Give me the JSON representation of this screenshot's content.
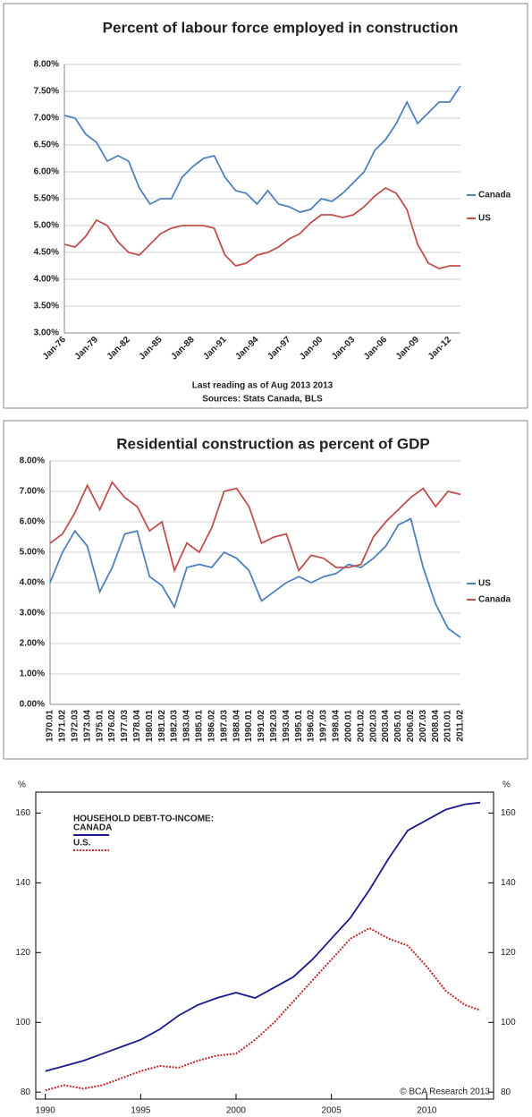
{
  "chart_data": [
    {
      "type": "line",
      "title": "Percent of labour force employed in construction",
      "categories": [
        "Jan-76",
        null,
        null,
        "Jan-79",
        null,
        null,
        "Jan-82",
        null,
        null,
        "Jan-85",
        null,
        null,
        "Jan-88",
        null,
        null,
        "Jan-91",
        null,
        null,
        "Jan-94",
        null,
        null,
        "Jan-97",
        null,
        null,
        "Jan-00",
        null,
        null,
        "Jan-03",
        null,
        null,
        "Jan-06",
        null,
        null,
        "Jan-09",
        null,
        null,
        "Jan-12",
        null
      ],
      "series": [
        {
          "name": "Canada",
          "color": "#4f81bd",
          "values": [
            7.05,
            7.0,
            6.7,
            6.55,
            6.2,
            6.3,
            6.2,
            5.7,
            5.4,
            5.5,
            5.5,
            5.9,
            6.1,
            6.25,
            6.3,
            5.9,
            5.65,
            5.6,
            5.4,
            5.65,
            5.4,
            5.35,
            5.25,
            5.3,
            5.5,
            5.45,
            5.6,
            5.8,
            6.0,
            6.4,
            6.6,
            6.9,
            7.3,
            6.9,
            7.1,
            7.3,
            7.3,
            7.6
          ]
        },
        {
          "name": "US",
          "color": "#c0504d",
          "values": [
            4.65,
            4.6,
            4.8,
            5.1,
            5.0,
            4.7,
            4.5,
            4.45,
            4.65,
            4.85,
            4.95,
            5.0,
            5.0,
            5.0,
            4.95,
            4.45,
            4.25,
            4.3,
            4.45,
            4.5,
            4.6,
            4.75,
            4.85,
            5.05,
            5.2,
            5.2,
            5.15,
            5.2,
            5.35,
            5.55,
            5.7,
            5.6,
            5.3,
            4.65,
            4.3,
            4.2,
            4.25,
            4.25
          ]
        }
      ],
      "ylim": [
        3,
        8
      ],
      "yticks": [
        {
          "value": 3,
          "label": "3.00%"
        },
        {
          "value": 3.5,
          "label": "3.50%"
        },
        {
          "value": 4,
          "label": "4.00%"
        },
        {
          "value": 4.5,
          "label": "4.50%"
        },
        {
          "value": 5,
          "label": "5.00%"
        },
        {
          "value": 5.5,
          "label": "5.50%"
        },
        {
          "value": 6,
          "label": "6.00%"
        },
        {
          "value": 6.5,
          "label": "6.50%"
        },
        {
          "value": 7,
          "label": "7.00%"
        },
        {
          "value": 7.5,
          "label": "7.50%"
        },
        {
          "value": 8,
          "label": "8.00%"
        }
      ],
      "grid": true,
      "legend": "right",
      "notes": [
        "Last reading as of Aug 2013 2013",
        "Sources: Stats Canada, BLS"
      ]
    },
    {
      "type": "line",
      "title": "Residential construction as  percent of GDP",
      "categories": [
        "1970.01",
        "1971.02",
        "1972.03",
        "1973.04",
        "1975.01",
        "1976.02",
        "1977.03",
        "1978.04",
        "1980.01",
        "1981.02",
        "1982.03",
        "1983.04",
        "1985.01",
        "1986.02",
        "1987.03",
        "1988.04",
        "1990.01",
        "1991.02",
        "1992.03",
        "1993.04",
        "1995.01",
        "1996.02",
        "1997.03",
        "1998.04",
        "2000.01",
        "2001.02",
        "2002.03",
        "2003.04",
        "2005.01",
        "2006.02",
        "2007.03",
        "2008.04",
        "2010.01",
        "2011.02"
      ],
      "series": [
        {
          "name": "US",
          "color": "#4f81bd",
          "values": [
            4.0,
            5.0,
            5.7,
            5.2,
            3.7,
            4.5,
            5.6,
            5.7,
            4.2,
            3.9,
            3.2,
            4.5,
            4.6,
            4.5,
            5.0,
            4.8,
            4.4,
            3.4,
            3.7,
            4.0,
            4.2,
            4.0,
            4.2,
            4.3,
            4.6,
            4.5,
            4.8,
            5.2,
            5.9,
            6.1,
            4.5,
            3.3,
            2.5,
            2.2
          ]
        },
        {
          "name": "Canada",
          "color": "#c0504d",
          "values": [
            5.3,
            5.6,
            6.3,
            7.2,
            6.4,
            7.3,
            6.8,
            6.5,
            5.7,
            6.0,
            4.4,
            5.3,
            5.0,
            5.8,
            7.0,
            7.1,
            6.5,
            5.3,
            5.5,
            5.6,
            4.4,
            4.9,
            4.8,
            4.5,
            4.5,
            4.6,
            5.5,
            6.0,
            6.4,
            6.8,
            7.1,
            6.5,
            7.0,
            6.9
          ]
        }
      ],
      "ylim": [
        0,
        8
      ],
      "yticks": [
        {
          "value": 0,
          "label": "0.00%"
        },
        {
          "value": 1,
          "label": "1.00%"
        },
        {
          "value": 2,
          "label": "2.00%"
        },
        {
          "value": 3,
          "label": "3.00%"
        },
        {
          "value": 4,
          "label": "4.00%"
        },
        {
          "value": 5,
          "label": "5.00%"
        },
        {
          "value": 6,
          "label": "6.00%"
        },
        {
          "value": 7,
          "label": "7.00%"
        },
        {
          "value": 8,
          "label": "8.00%"
        }
      ],
      "grid": true,
      "legend": "right"
    },
    {
      "type": "line",
      "ylabel": "%",
      "y2label": "%",
      "legend_title": "HOUSEHOLD DEBT-TO-INCOME:",
      "credit": "© BCA Research 2013",
      "x": [
        1990,
        1991,
        1992,
        1993,
        1994,
        1995,
        1996,
        1997,
        1998,
        1999,
        2000,
        2001,
        2002,
        2003,
        2004,
        2005,
        2006,
        2007,
        2008,
        2009,
        2010,
        2011,
        2012,
        2012.8
      ],
      "series": [
        {
          "name": "CANADA",
          "color": "#1a1a8c",
          "style": "solid",
          "values": [
            86,
            87.5,
            89,
            91,
            93,
            95,
            98,
            102,
            105,
            107,
            108.5,
            107,
            110,
            113,
            118,
            124,
            130,
            138,
            147,
            155,
            158,
            161,
            162.5,
            163
          ]
        },
        {
          "name": "U.S.",
          "color": "#c0282d",
          "style": "dotted",
          "values": [
            80.5,
            82,
            81,
            82,
            84,
            86,
            87.5,
            87,
            89,
            90.5,
            91,
            95,
            100,
            106,
            112,
            118,
            124,
            127,
            124,
            122,
            116,
            109,
            105,
            103.5
          ]
        }
      ],
      "xlim": [
        1989.5,
        2013.5
      ],
      "xticks": [
        1990,
        1995,
        2000,
        2005,
        2010
      ],
      "ylim": [
        78,
        166
      ],
      "yticks": [
        80,
        100,
        120,
        140,
        160
      ],
      "y2lim": [
        78,
        166
      ],
      "y2ticks": [
        80,
        100,
        120,
        140,
        160
      ],
      "grid": false,
      "legend": "upper-left"
    }
  ]
}
